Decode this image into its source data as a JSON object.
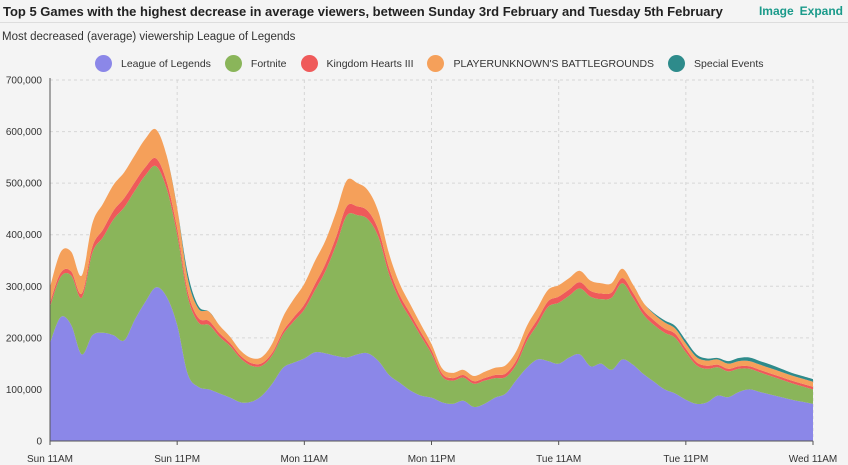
{
  "header": {
    "title": "Top 5 Games with the highest decrease in average viewers, between Sunday 3rd February and Tuesday 5th February",
    "links": [
      "Image",
      "Expand"
    ]
  },
  "subtitle": "Most decreased (average) viewership League of Legends",
  "chart_data": {
    "type": "area",
    "stacked": true,
    "title": "Top 5 Games with the highest decrease in average viewers, between Sunday 3rd February and Tuesday 5th February",
    "subtitle": "Most decreased (average) viewership League of Legends",
    "xlabel": "",
    "ylabel": "",
    "ylim": [
      0,
      700000
    ],
    "yticks": [
      0,
      100000,
      200000,
      300000,
      400000,
      500000,
      600000,
      700000
    ],
    "ytick_labels": [
      "0",
      "100,000",
      "200,000",
      "300,000",
      "400,000",
      "500,000",
      "600,000",
      "700,000"
    ],
    "x_unit": "hours since Sun 11AM",
    "xlim": [
      0,
      72
    ],
    "xticks": [
      0,
      12,
      24,
      36,
      48,
      60,
      72
    ],
    "xtick_labels": [
      "Sun 11AM",
      "Sun 11PM",
      "Mon 11AM",
      "Mon 11PM",
      "Tue 11AM",
      "Tue 11PM",
      "Wed 11AM"
    ],
    "grid": true,
    "legend_position": "top",
    "x": [
      0,
      1,
      2,
      3,
      4,
      5,
      6,
      7,
      8,
      9,
      10,
      11,
      12,
      13,
      14,
      15,
      16,
      17,
      18,
      19,
      20,
      21,
      22,
      23,
      24,
      25,
      26,
      27,
      28,
      29,
      30,
      31,
      32,
      33,
      34,
      35,
      36,
      37,
      38,
      39,
      40,
      41,
      42,
      43,
      44,
      45,
      46,
      47,
      48,
      49,
      50,
      51,
      52,
      53,
      54,
      55,
      56,
      57,
      58,
      59,
      60,
      61,
      62,
      63,
      64,
      65,
      66,
      67,
      68,
      69,
      70,
      71,
      72
    ],
    "series": [
      {
        "name": "League of Legends",
        "color": "#8b87e8",
        "values": [
          190000,
          240000,
          225000,
          168000,
          205000,
          210000,
          205000,
          195000,
          235000,
          270000,
          298000,
          280000,
          225000,
          130000,
          105000,
          100000,
          92000,
          84000,
          75000,
          76000,
          88000,
          112000,
          142000,
          152000,
          160000,
          172000,
          170000,
          165000,
          162000,
          168000,
          170000,
          155000,
          128000,
          113000,
          98000,
          88000,
          84000,
          75000,
          72000,
          78000,
          66000,
          72000,
          84000,
          92000,
          118000,
          142000,
          158000,
          155000,
          150000,
          162000,
          168000,
          145000,
          150000,
          138000,
          158000,
          148000,
          130000,
          115000,
          100000,
          92000,
          80000,
          72000,
          75000,
          88000,
          85000,
          95000,
          100000,
          95000,
          90000,
          85000,
          80000,
          76000,
          72000
        ]
      },
      {
        "name": "Fortnite",
        "color": "#8ab55a",
        "values": [
          70000,
          78000,
          96000,
          110000,
          160000,
          185000,
          225000,
          258000,
          250000,
          245000,
          235000,
          210000,
          175000,
          150000,
          125000,
          125000,
          110000,
          100000,
          85000,
          70000,
          58000,
          55000,
          65000,
          80000,
          95000,
          120000,
          160000,
          215000,
          275000,
          270000,
          260000,
          240000,
          195000,
          160000,
          140000,
          115000,
          85000,
          50000,
          45000,
          45000,
          45000,
          45000,
          38000,
          32000,
          30000,
          52000,
          68000,
          105000,
          118000,
          120000,
          128000,
          135000,
          125000,
          140000,
          148000,
          130000,
          115000,
          110000,
          110000,
          108000,
          92000,
          75000,
          65000,
          55000,
          50000,
          45000,
          40000,
          38000,
          36000,
          34000,
          32000,
          30000,
          28000
        ]
      },
      {
        "name": "Kingdom Hearts III",
        "color": "#ef5a5a",
        "values": [
          8000,
          8000,
          8000,
          8000,
          12000,
          15000,
          17000,
          18000,
          17000,
          16000,
          15000,
          14000,
          12000,
          10000,
          9000,
          8000,
          7000,
          6000,
          5000,
          5000,
          5000,
          5000,
          6000,
          8000,
          10000,
          12000,
          14000,
          16000,
          18000,
          17000,
          16000,
          14000,
          12000,
          10000,
          9000,
          8000,
          7000,
          6000,
          5000,
          5000,
          5000,
          5000,
          6000,
          7000,
          8000,
          9000,
          10000,
          11000,
          12000,
          12000,
          12000,
          11000,
          11000,
          10000,
          10000,
          10000,
          9000,
          9000,
          8000,
          8000,
          7000,
          6000,
          6000,
          5000,
          5000,
          5000,
          5000,
          5000,
          5000,
          5000,
          5000,
          5000,
          5000
        ]
      },
      {
        "name": "PLAYERUNKNOWN'S BATTLEGROUNDS",
        "color": "#f5a05a",
        "values": [
          30000,
          40000,
          38000,
          35000,
          45000,
          50000,
          50000,
          50000,
          52000,
          55000,
          56000,
          50000,
          40000,
          25000,
          18000,
          18000,
          15000,
          12000,
          10000,
          10000,
          12000,
          18000,
          28000,
          35000,
          40000,
          45000,
          45000,
          48000,
          50000,
          45000,
          40000,
          35000,
          28000,
          22000,
          18000,
          15000,
          12000,
          10000,
          10000,
          10000,
          10000,
          12000,
          14000,
          16000,
          18000,
          20000,
          22000,
          22000,
          22000,
          22000,
          22000,
          20000,
          20000,
          18000,
          18000,
          16000,
          14000,
          12000,
          12000,
          10000,
          10000,
          10000,
          10000,
          10000,
          10000,
          10000,
          10000,
          10000,
          10000,
          10000,
          10000,
          10000,
          10000
        ]
      },
      {
        "name": "Special Events",
        "color": "#2e8b8b",
        "values": [
          0,
          0,
          0,
          0,
          0,
          0,
          0,
          0,
          0,
          0,
          0,
          0,
          0,
          10000,
          5000,
          0,
          0,
          0,
          0,
          0,
          0,
          0,
          0,
          0,
          0,
          0,
          0,
          0,
          0,
          0,
          0,
          0,
          0,
          0,
          0,
          0,
          0,
          0,
          0,
          0,
          0,
          0,
          0,
          0,
          0,
          0,
          0,
          0,
          0,
          0,
          0,
          0,
          0,
          0,
          0,
          0,
          0,
          2000,
          4000,
          5000,
          6000,
          5000,
          4000,
          3000,
          5000,
          6000,
          7000,
          7000,
          7000,
          6000,
          5000,
          5000,
          5000
        ]
      }
    ]
  }
}
